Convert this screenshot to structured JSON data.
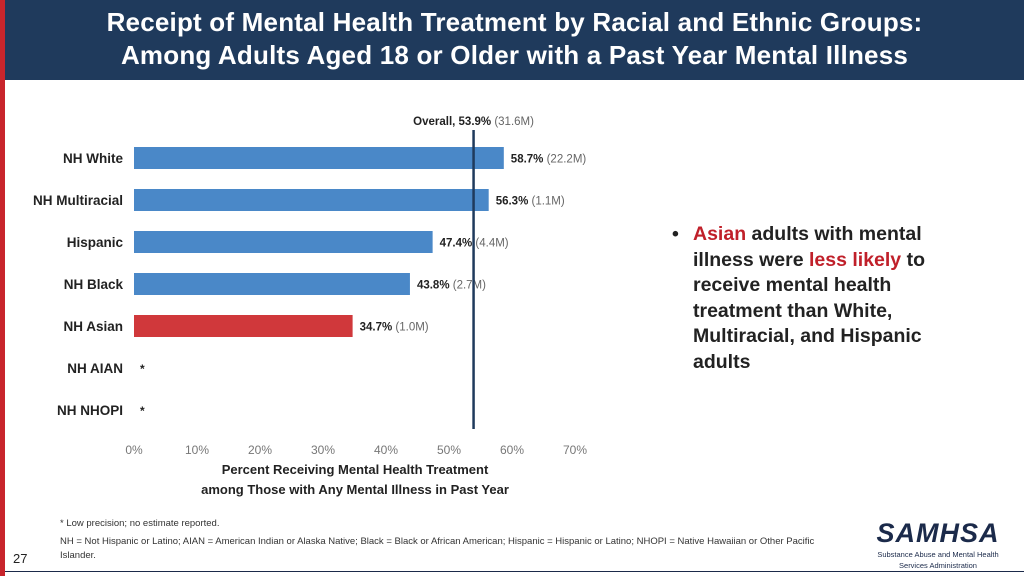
{
  "slide": {
    "title_line1": "Receipt of Mental Health Treatment by Racial and Ethnic Groups:",
    "title_line2": "Among Adults Aged 18 or Older with a Past Year Mental Illness",
    "page_number": "27"
  },
  "colors": {
    "header_bg": "#1f3a5c",
    "left_stripe": "#c8252c",
    "bar_default": "#4a88c8",
    "bar_highlight": "#d0383b",
    "overall_line": "#1f3a5c",
    "text_red": "#c0202a"
  },
  "bullet": {
    "part1": "Asian",
    "part2": " adults with mental illness were ",
    "part3": "less likely",
    "part4": " to receive mental health treatment than White, Multiracial, and Hispanic adults"
  },
  "footnotes": {
    "low_precision": "* Low precision; no estimate reported.",
    "abbreviations": "NH = Not Hispanic or Latino; AIAN = American Indian or Alaska Native; Black = Black or African American; Hispanic = Hispanic or Latino; NHOPI = Native Hawaiian or Other Pacific Islander."
  },
  "logo": {
    "name": "SAMHSA",
    "subtitle_line1": "Substance Abuse and Mental Health",
    "subtitle_line2": "Services Administration"
  },
  "chart_data": {
    "type": "bar",
    "orientation": "horizontal",
    "categories": [
      "NH White",
      "NH Multiracial",
      "Hispanic",
      "NH Black",
      "NH Asian",
      "NH AIAN",
      "NH NHOPI"
    ],
    "values": [
      58.7,
      56.3,
      47.4,
      43.8,
      34.7,
      null,
      null
    ],
    "value_labels": [
      "58.7%",
      "56.3%",
      "47.4%",
      "43.8%",
      "34.7%",
      "*",
      "*"
    ],
    "count_labels": [
      "(22.2M)",
      "(1.1M)",
      "(4.4M)",
      "(2.7M)",
      "(1.0M)",
      "",
      ""
    ],
    "highlight": [
      "no",
      "no",
      "no",
      "no",
      "yes",
      "no",
      "no"
    ],
    "xlim": [
      0,
      70
    ],
    "xticks": [
      "0%",
      "10%",
      "20%",
      "30%",
      "40%",
      "50%",
      "60%",
      "70%"
    ],
    "xtick_values": [
      0,
      10,
      20,
      30,
      40,
      50,
      60,
      70
    ],
    "xlabel_line1": "Percent Receiving Mental Health Treatment",
    "xlabel_line2": "among Those with Any Mental Illness in Past Year",
    "reference_value": 53.9,
    "reference_label": "Overall, 53.9%",
    "reference_count": "(31.6M)",
    "grid": false
  }
}
